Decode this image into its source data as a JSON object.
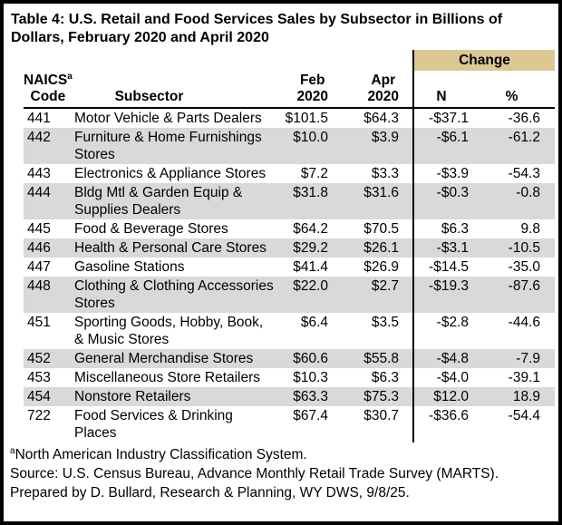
{
  "title": "Table 4: U.S. Retail and Food Services Sales by Subsector in Billions of\nDollars, February 2020 and April 2020",
  "colors": {
    "change_band": "#dcc894",
    "row_stripe": "#d9d9d9",
    "border": "#000000"
  },
  "table": {
    "change_label": "Change",
    "columns": {
      "code_line1": "NAICS",
      "code_sup": "a",
      "code_line2": "Code",
      "subsector": "Subsector",
      "feb_line1": "Feb",
      "feb_line2": "2020",
      "apr_line1": "Apr",
      "apr_line2": "2020",
      "n": "N",
      "pct": "%"
    },
    "rows": [
      {
        "code": "441",
        "subsector": "Motor Vehicle & Parts Dealers",
        "feb": "$101.5",
        "apr": "$64.3",
        "n": "-$37.1",
        "pct": "-36.6"
      },
      {
        "code": "442",
        "subsector": "Furniture & Home Furnishings\nStores",
        "feb": "$10.0",
        "apr": "$3.9",
        "n": "-$6.1",
        "pct": "-61.2"
      },
      {
        "code": "443",
        "subsector": "Electronics & Appliance Stores",
        "feb": "$7.2",
        "apr": "$3.3",
        "n": "-$3.9",
        "pct": "-54.3"
      },
      {
        "code": "444",
        "subsector": "Bldg Mtl & Garden Equip &\nSupplies Dealers",
        "feb": "$31.8",
        "apr": "$31.6",
        "n": "-$0.3",
        "pct": "-0.8"
      },
      {
        "code": "445",
        "subsector": "Food & Beverage Stores",
        "feb": "$64.2",
        "apr": "$70.5",
        "n": "$6.3",
        "pct": "9.8"
      },
      {
        "code": "446",
        "subsector": "Health & Personal Care Stores",
        "feb": "$29.2",
        "apr": "$26.1",
        "n": "-$3.1",
        "pct": "-10.5"
      },
      {
        "code": "447",
        "subsector": "Gasoline Stations",
        "feb": "$41.4",
        "apr": "$26.9",
        "n": "-$14.5",
        "pct": "-35.0"
      },
      {
        "code": "448",
        "subsector": "Clothing & Clothing Accessories\nStores",
        "feb": "$22.0",
        "apr": "$2.7",
        "n": "-$19.3",
        "pct": "-87.6"
      },
      {
        "code": "451",
        "subsector": "Sporting Goods, Hobby, Book,\n& Music Stores",
        "feb": "$6.4",
        "apr": "$3.5",
        "n": "-$2.8",
        "pct": "-44.6"
      },
      {
        "code": "452",
        "subsector": "General Merchandise Stores",
        "feb": "$60.6",
        "apr": "$55.8",
        "n": "-$4.8",
        "pct": "-7.9"
      },
      {
        "code": "453",
        "subsector": "Miscellaneous Store Retailers",
        "feb": "$10.3",
        "apr": "$6.3",
        "n": "-$4.0",
        "pct": "-39.1"
      },
      {
        "code": "454",
        "subsector": "Nonstore Retailers",
        "feb": "$63.3",
        "apr": "$75.3",
        "n": "$12.0",
        "pct": "18.9"
      },
      {
        "code": "722",
        "subsector": "Food Services & Drinking\nPlaces",
        "feb": "$67.4",
        "apr": "$30.7",
        "n": "-$36.6",
        "pct": "-54.4"
      }
    ]
  },
  "footnotes": [
    {
      "sup": "a",
      "text": "North American Industry Classification System."
    },
    {
      "text": "Source: U.S. Census Bureau, Advance Monthly Retail Trade Survey (MARTS)."
    },
    {
      "text": "Prepared by D. Bullard, Research & Planning, WY DWS, 9/8/25."
    }
  ],
  "chart_data": {
    "type": "table",
    "title": "Table 4: U.S. Retail and Food Services Sales by Subsector in Billions of Dollars, February 2020 and April 2020",
    "columns": [
      "NAICS Code",
      "Subsector",
      "Feb 2020",
      "Apr 2020",
      "Change N",
      "Change %"
    ],
    "rows": [
      [
        "441",
        "Motor Vehicle & Parts Dealers",
        101.5,
        64.3,
        -37.1,
        -36.6
      ],
      [
        "442",
        "Furniture & Home Furnishings Stores",
        10.0,
        3.9,
        -6.1,
        -61.2
      ],
      [
        "443",
        "Electronics & Appliance Stores",
        7.2,
        3.3,
        -3.9,
        -54.3
      ],
      [
        "444",
        "Bldg Mtl & Garden Equip & Supplies Dealers",
        31.8,
        31.6,
        -0.3,
        -0.8
      ],
      [
        "445",
        "Food & Beverage Stores",
        64.2,
        70.5,
        6.3,
        9.8
      ],
      [
        "446",
        "Health & Personal Care Stores",
        29.2,
        26.1,
        -3.1,
        -10.5
      ],
      [
        "447",
        "Gasoline Stations",
        41.4,
        26.9,
        -14.5,
        -35.0
      ],
      [
        "448",
        "Clothing & Clothing Accessories Stores",
        22.0,
        2.7,
        -19.3,
        -87.6
      ],
      [
        "451",
        "Sporting Goods, Hobby, Book, & Music Stores",
        6.4,
        3.5,
        -2.8,
        -44.6
      ],
      [
        "452",
        "General Merchandise Stores",
        60.6,
        55.8,
        -4.8,
        -7.9
      ],
      [
        "453",
        "Miscellaneous Store Retailers",
        10.3,
        6.3,
        -4.0,
        -39.1
      ],
      [
        "454",
        "Nonstore Retailers",
        63.3,
        75.3,
        12.0,
        18.9
      ],
      [
        "722",
        "Food Services & Drinking Places",
        67.4,
        30.7,
        -36.6,
        -54.4
      ]
    ],
    "units": "Billions of Dollars"
  }
}
